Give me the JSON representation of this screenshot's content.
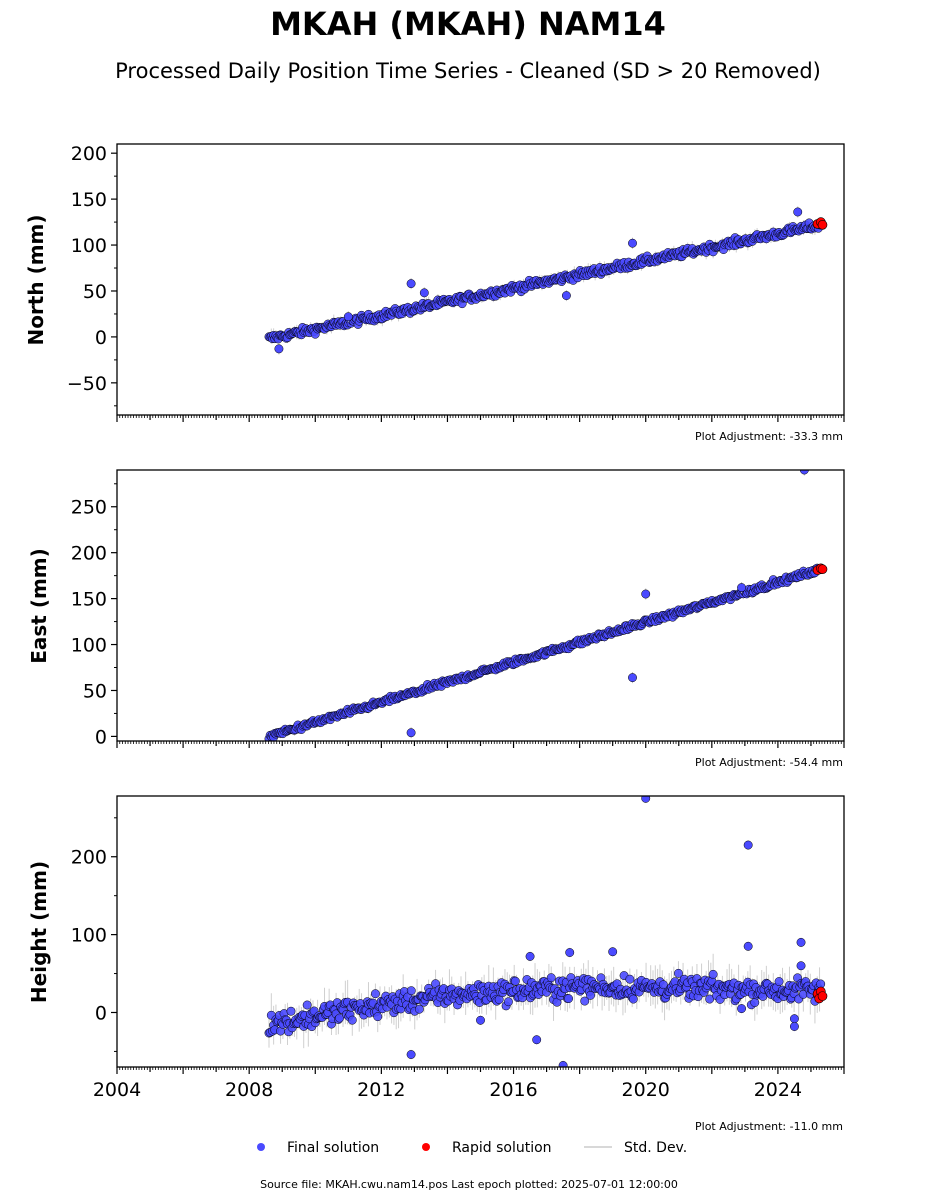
{
  "header": {
    "title": "MKAH (MKAH) NAM14",
    "subtitle": "Processed Daily Position Time Series - Cleaned (SD > 20 Removed)"
  },
  "footer": {
    "source": "Source file: MKAH.cwu.nam14.pos  Last epoch plotted: 2025-07-01 12:00:00"
  },
  "legend": {
    "final": "Final solution",
    "rapid": "Rapid solution",
    "std": "Std. Dev."
  },
  "colors": {
    "final": "#4a4aff",
    "rapid": "#ff0000",
    "std": "#bbbbbb",
    "edge": "#000000"
  },
  "chart_data": [
    {
      "type": "scatter",
      "ylabel": "North (mm)",
      "adjustment": "Plot Adjustment: -33.3 mm",
      "xlim": [
        2004,
        2026
      ],
      "ylim": [
        -85,
        210
      ],
      "yticks": [
        -50,
        0,
        50,
        100,
        150,
        200
      ],
      "ytick_labels": [
        "−50",
        "0",
        "50",
        "100",
        "150",
        "200"
      ],
      "trend": [
        [
          2008.6,
          -2
        ],
        [
          2025.3,
          122
        ]
      ],
      "noise": 3.5,
      "outliers": [
        [
          2012.9,
          58
        ],
        [
          2019.6,
          102
        ],
        [
          2024.6,
          136
        ],
        [
          2017.6,
          45
        ],
        [
          2008.9,
          -13
        ],
        [
          2011.0,
          22
        ],
        [
          2013.3,
          48
        ]
      ],
      "rapid": [
        [
          2025.2,
          123
        ],
        [
          2025.3,
          125
        ],
        [
          2025.35,
          122
        ]
      ]
    },
    {
      "type": "scatter",
      "ylabel": "East (mm)",
      "adjustment": "Plot Adjustment: -54.4 mm",
      "xlim": [
        2004,
        2026
      ],
      "ylim": [
        -5,
        290
      ],
      "yticks": [
        0,
        50,
        100,
        150,
        200,
        250
      ],
      "ytick_labels": [
        "0",
        "50",
        "100",
        "150",
        "200",
        "250"
      ],
      "trend": [
        [
          2008.6,
          0
        ],
        [
          2025.3,
          182
        ]
      ],
      "noise": 2.5,
      "outliers": [
        [
          2012.9,
          4
        ],
        [
          2019.6,
          64
        ],
        [
          2020.0,
          155
        ],
        [
          2024.8,
          290
        ],
        [
          2022.9,
          162
        ]
      ],
      "rapid": [
        [
          2025.2,
          181
        ],
        [
          2025.3,
          183
        ],
        [
          2025.35,
          182
        ]
      ]
    },
    {
      "type": "scatter",
      "ylabel": "Height (mm)",
      "adjustment": "Plot Adjustment: -11.0 mm",
      "xlim": [
        2004,
        2026
      ],
      "ylim": [
        -70,
        278
      ],
      "yticks": [
        0,
        100,
        200
      ],
      "ytick_labels": [
        "0",
        "100",
        "200"
      ],
      "xticks": [
        2004,
        2008,
        2012,
        2016,
        2020,
        2024
      ],
      "xtick_labels": [
        "2004",
        "2008",
        "2012",
        "2016",
        "2020",
        "2024"
      ],
      "trend": [
        [
          2008.6,
          -15
        ],
        [
          2012.0,
          10
        ],
        [
          2014.0,
          22
        ],
        [
          2018.0,
          33
        ],
        [
          2025.3,
          28
        ]
      ],
      "noise": 12,
      "outliers": [
        [
          2012.9,
          -54
        ],
        [
          2020.0,
          275
        ],
        [
          2023.1,
          215
        ],
        [
          2023.1,
          85
        ],
        [
          2016.7,
          -35
        ],
        [
          2017.5,
          -68
        ],
        [
          2017.7,
          77
        ],
        [
          2019.0,
          78
        ],
        [
          2024.7,
          90
        ],
        [
          2024.7,
          60
        ],
        [
          2016.5,
          72
        ],
        [
          2015.0,
          -10
        ],
        [
          2024.5,
          -18
        ],
        [
          2024.5,
          -8
        ],
        [
          2022.9,
          5
        ]
      ],
      "rapid": [
        [
          2025.2,
          24
        ],
        [
          2025.25,
          18
        ],
        [
          2025.3,
          27
        ],
        [
          2025.35,
          21
        ]
      ]
    }
  ]
}
